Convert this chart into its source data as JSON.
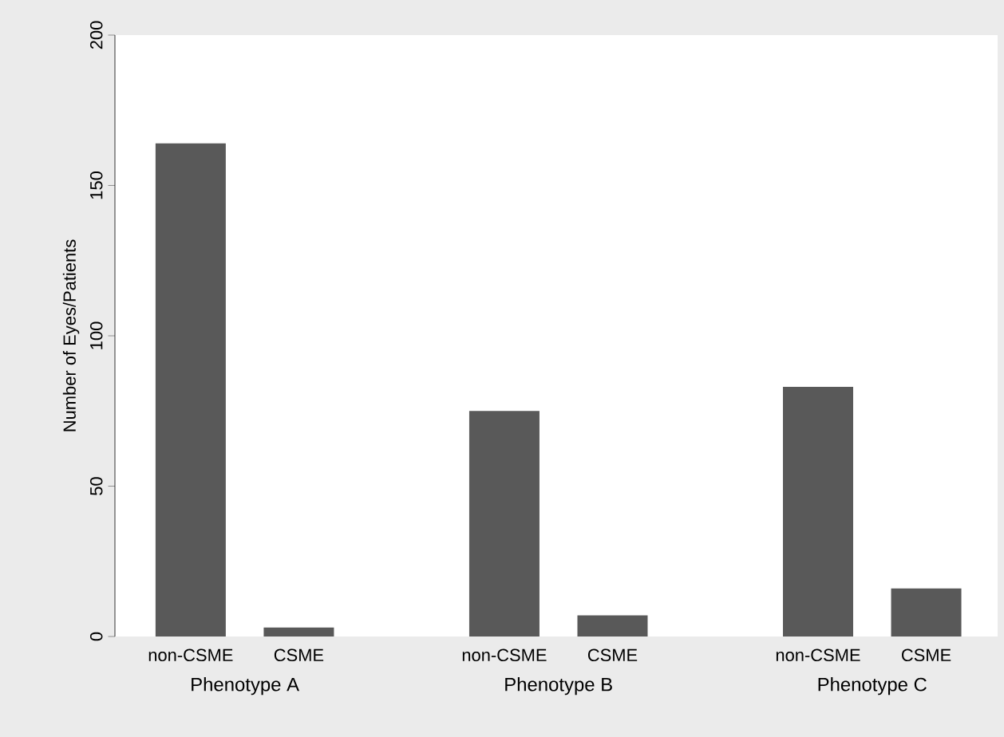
{
  "chart_data": {
    "type": "bar",
    "ylabel": "Number of Eyes/Patients",
    "categories": [
      "non-CSME",
      "CSME",
      "non-CSME",
      "CSME",
      "non-CSME",
      "CSME"
    ],
    "values": [
      164,
      3,
      75,
      7,
      83,
      16
    ],
    "color": "#595959",
    "ylim": [
      0,
      200
    ],
    "yticks": [
      0,
      50,
      100,
      150,
      200
    ],
    "grid": false,
    "annotations": [
      "Phenotype A",
      "Phenotype B",
      "Phenotype C"
    ]
  }
}
